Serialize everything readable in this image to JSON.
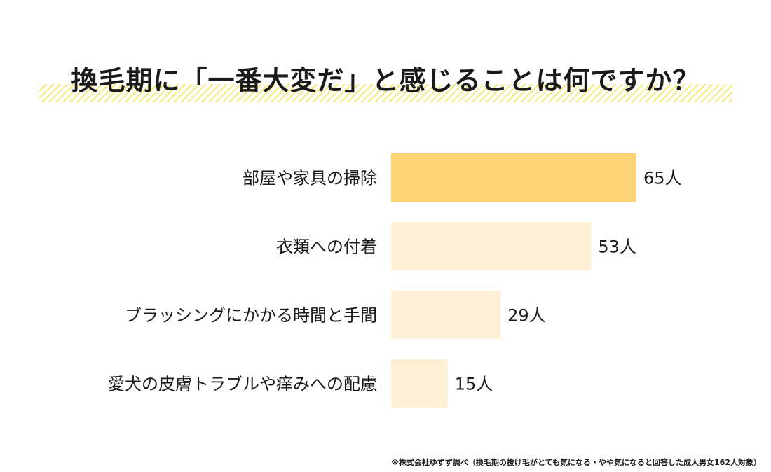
{
  "title": "換毛期に「一番大変だ」と感じることは何ですか？",
  "footnote": "※株式会社ゆずず調べ（換毛期の抜け毛がとても気になる・やや気になると回答した成人男女162人対象）",
  "colors": {
    "highlight": "#fed375",
    "normal": "#fef0d5",
    "hatch": "#f6ec7e"
  },
  "chart_data": {
    "type": "bar",
    "orientation": "horizontal",
    "categories": [
      "部屋や家具の掃除",
      "衣類への付着",
      "ブラッシングにかかる時間と手間",
      "愛犬の皮膚トラブルや痒みへの配慮"
    ],
    "values": [
      65,
      53,
      29,
      15
    ],
    "value_labels": [
      "65人",
      "53人",
      "29人",
      "15人"
    ],
    "unit": "人",
    "highlight_index": 0,
    "grid": false,
    "legend": "none"
  }
}
